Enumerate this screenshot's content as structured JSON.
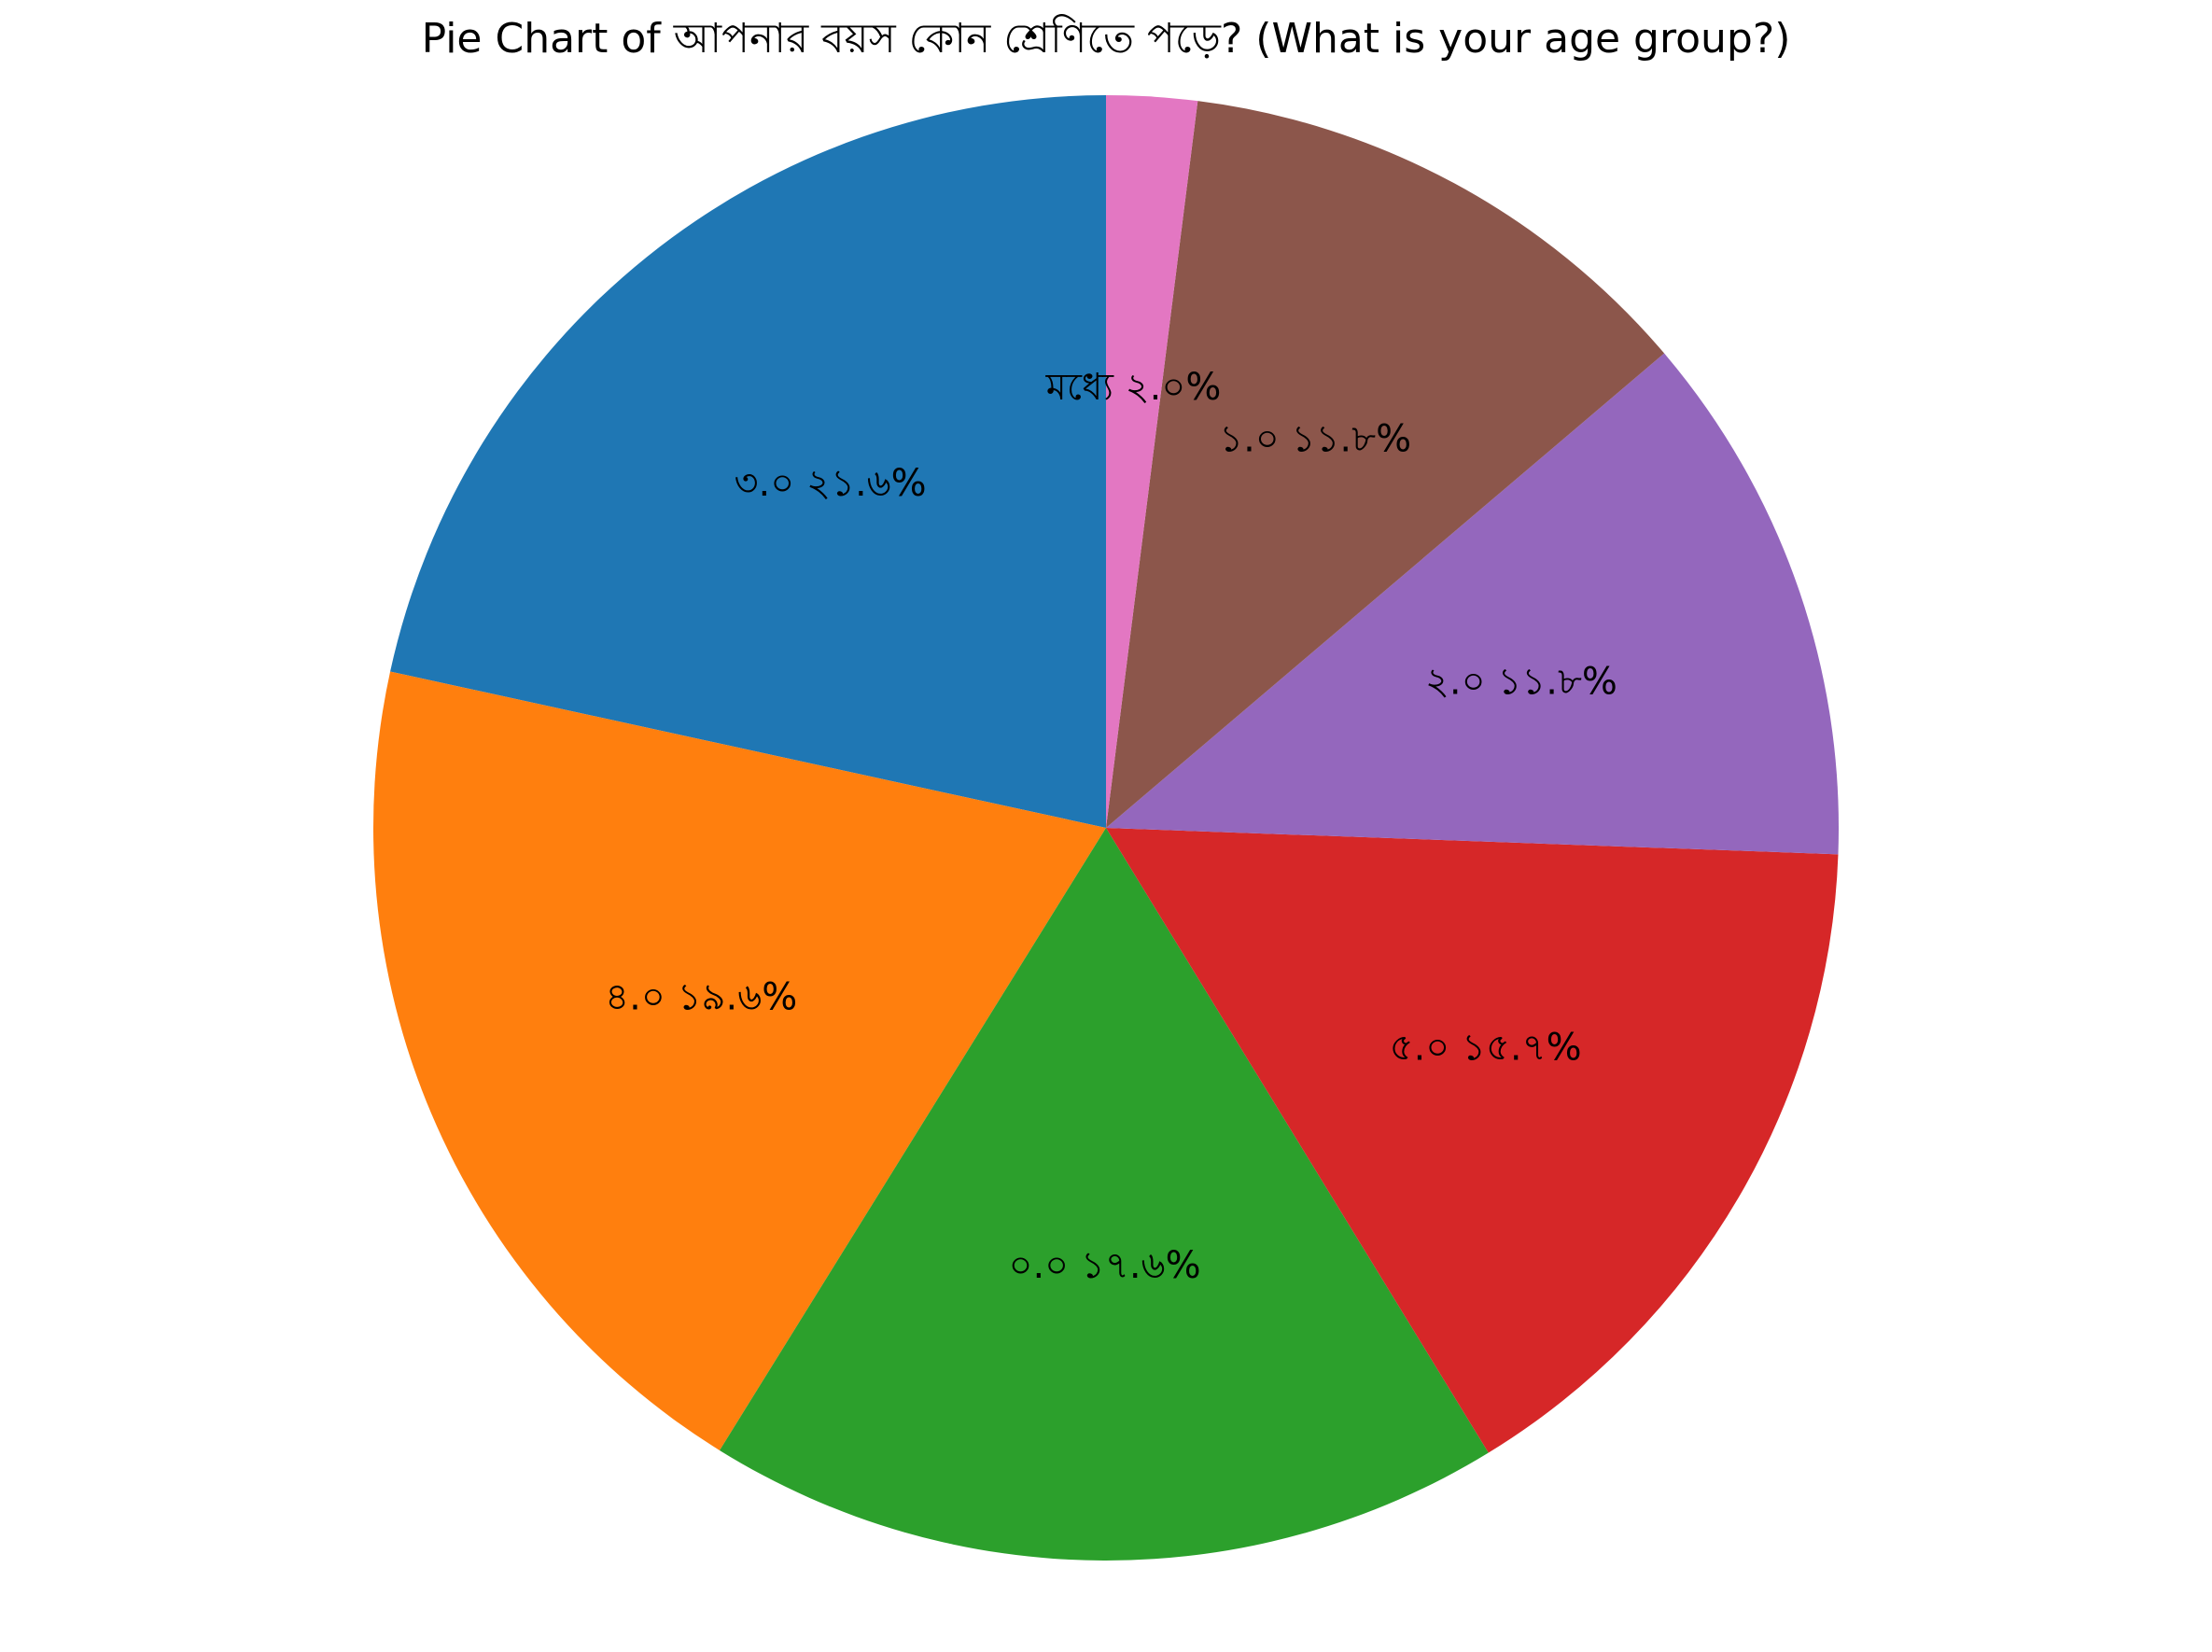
{
  "chart_data": {
    "type": "pie",
    "title": "Pie Chart of আপনার বয়স কোন শ্রেণিতে পড়ে? (What is your age group?)",
    "start_angle_deg": 90,
    "direction": "counterclockwise",
    "slices": [
      {
        "label": "৩.০",
        "value": 21.6,
        "pct_label": "২১.৬%",
        "color": "#1f77b4"
      },
      {
        "label": "৪.০",
        "value": 19.6,
        "pct_label": "১৯.৬%",
        "color": "#ff7f0e"
      },
      {
        "label": "০.০",
        "value": 17.6,
        "pct_label": "১৭.৬%",
        "color": "#2ca02c"
      },
      {
        "label": "৫.০",
        "value": 15.7,
        "pct_label": "১৫.৭%",
        "color": "#d62728"
      },
      {
        "label": "২.০",
        "value": 11.8,
        "pct_label": "১১.৮%",
        "color": "#9467bd"
      },
      {
        "label": "১.০",
        "value": 11.8,
        "pct_label": "১১.৮%",
        "color": "#8c564b"
      },
      {
        "label": "মধ্যে",
        "value": 2.0,
        "pct_label": "২.০%",
        "color": "#e377c2"
      }
    ]
  }
}
